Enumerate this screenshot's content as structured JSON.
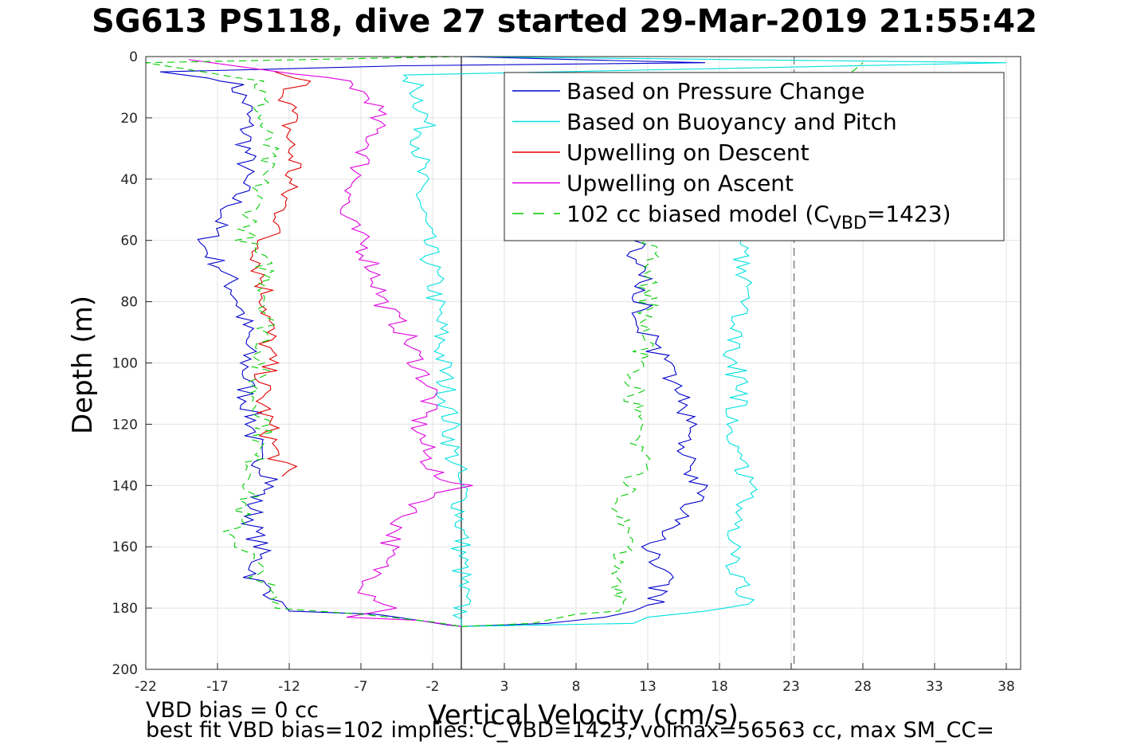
{
  "chart_data": {
    "type": "line",
    "title": "SG613 PS118, dive 27 started 29-Mar-2019 21:55:42",
    "xlabel": "Vertical Velocity (cm/s)",
    "ylabel": "Depth (m)",
    "xlim": [
      -22,
      39
    ],
    "ylim": [
      0,
      200
    ],
    "y_reversed": true,
    "grid": true,
    "legend_position": "top-right",
    "xticks": [
      "-22",
      "-17",
      "-12",
      "-7",
      "-2",
      "3",
      "8",
      "13",
      "18",
      "23",
      "28",
      "33",
      "38"
    ],
    "yticks": [
      "0",
      "20",
      "40",
      "60",
      "80",
      "100",
      "120",
      "140",
      "160",
      "180",
      "200"
    ],
    "vertical_lines": [
      {
        "x": 0,
        "style": "solid",
        "color": "#404040"
      },
      {
        "x": 23.2,
        "style": "dashed",
        "color": "#808080"
      }
    ],
    "legend": {
      "entries": [
        {
          "label": "Based on Pressure Change",
          "color": "#0000cc",
          "dash": "solid"
        },
        {
          "label": "Based on Buoyancy and Pitch",
          "color": "#00e0e0",
          "dash": "solid"
        },
        {
          "label": "Upwelling on Descent",
          "color": "#e00000",
          "dash": "solid"
        },
        {
          "label": "Upwelling on Ascent",
          "color": "#e000e0",
          "dash": "solid"
        },
        {
          "label_main": "102 cc biased model (C",
          "label_sub": "VBD",
          "label_end": "=1423)",
          "color": "#00cc00",
          "dash": "dashed"
        }
      ]
    },
    "series": [
      {
        "name": "Based on Pressure Change",
        "color": "#0000cc",
        "segment": "descent",
        "points": [
          [
            0,
            0
          ],
          [
            8,
            1
          ],
          [
            17,
            2
          ],
          [
            -4,
            3
          ],
          [
            -21,
            5
          ],
          [
            -16,
            8
          ],
          [
            -15,
            15
          ],
          [
            -15,
            25
          ],
          [
            -15,
            35
          ],
          [
            -15.5,
            45
          ],
          [
            -17,
            55
          ],
          [
            -18,
            62
          ],
          [
            -16.5,
            70
          ],
          [
            -15.5,
            80
          ],
          [
            -15,
            90
          ],
          [
            -15,
            100
          ],
          [
            -15,
            110
          ],
          [
            -14.5,
            120
          ],
          [
            -14.5,
            130
          ],
          [
            -13,
            138
          ],
          [
            -14.5,
            145
          ],
          [
            -14.5,
            155
          ],
          [
            -14,
            160
          ],
          [
            -14.5,
            170
          ],
          [
            -12.5,
            178
          ],
          [
            -12,
            181
          ],
          [
            -6,
            182
          ],
          [
            -3,
            184
          ],
          [
            -1,
            185.5
          ],
          [
            0,
            186
          ]
        ]
      },
      {
        "name": "Based on Pressure Change",
        "color": "#0000cc",
        "segment": "ascent",
        "points": [
          [
            0,
            186
          ],
          [
            6,
            185
          ],
          [
            10,
            183
          ],
          [
            12,
            181
          ],
          [
            13.5,
            178
          ],
          [
            14,
            170
          ],
          [
            13,
            160
          ],
          [
            15.5,
            150
          ],
          [
            16.5,
            140
          ],
          [
            15.5,
            130
          ],
          [
            16,
            120
          ],
          [
            15.5,
            110
          ],
          [
            14,
            100
          ],
          [
            13,
            90
          ],
          [
            12.5,
            80
          ],
          [
            12.5,
            70
          ],
          [
            12,
            60
          ]
        ]
      },
      {
        "name": "Based on Buoyancy and Pitch",
        "color": "#00e0e0",
        "segment": "descent",
        "points": [
          [
            0,
            0
          ],
          [
            38,
            2
          ],
          [
            -4,
            6
          ],
          [
            -3.5,
            8
          ],
          [
            -3,
            12
          ],
          [
            -2.5,
            20
          ],
          [
            -2.8,
            30
          ],
          [
            -3,
            40
          ],
          [
            -2.8,
            50
          ],
          [
            -2.5,
            60
          ],
          [
            -2,
            70
          ],
          [
            -1.8,
            80
          ],
          [
            -1.5,
            90
          ],
          [
            -1.3,
            100
          ],
          [
            -1,
            110
          ],
          [
            -0.8,
            120
          ],
          [
            -0.6,
            130
          ],
          [
            -0.2,
            137
          ],
          [
            0,
            140
          ],
          [
            0,
            186
          ]
        ]
      },
      {
        "name": "Based on Buoyancy and Pitch",
        "color": "#00e0e0",
        "segment": "ascent",
        "points": [
          [
            0,
            186
          ],
          [
            12,
            185
          ],
          [
            13,
            183
          ],
          [
            19,
            180
          ],
          [
            20,
            176
          ],
          [
            19,
            170
          ],
          [
            19.5,
            160
          ],
          [
            19,
            150
          ],
          [
            20,
            140
          ],
          [
            19.5,
            130
          ],
          [
            19,
            120
          ],
          [
            19.5,
            110
          ],
          [
            19,
            100
          ],
          [
            19,
            90
          ],
          [
            19.5,
            80
          ],
          [
            19.5,
            70
          ],
          [
            19.5,
            60
          ]
        ]
      },
      {
        "name": "Upwelling on Descent",
        "color": "#e00000",
        "points": [
          [
            -13,
            5
          ],
          [
            -11,
            8
          ],
          [
            -12,
            12
          ],
          [
            -12,
            20
          ],
          [
            -12,
            30
          ],
          [
            -11.5,
            35
          ],
          [
            -12,
            40
          ],
          [
            -12.5,
            50
          ],
          [
            -12.5,
            55
          ],
          [
            -14,
            60
          ],
          [
            -14,
            70
          ],
          [
            -13.5,
            80
          ],
          [
            -13.5,
            90
          ],
          [
            -13.5,
            100
          ],
          [
            -14,
            110
          ],
          [
            -13.5,
            120
          ],
          [
            -13,
            130
          ],
          [
            -12,
            135
          ],
          [
            -12.5,
            137
          ]
        ]
      },
      {
        "name": "Upwelling on Ascent",
        "color": "#e000e0",
        "points": [
          [
            -19,
            1
          ],
          [
            -8,
            8
          ],
          [
            -6,
            15
          ],
          [
            -6,
            25
          ],
          [
            -7,
            35
          ],
          [
            -7.5,
            45
          ],
          [
            -8.5,
            50
          ],
          [
            -7,
            60
          ],
          [
            -6,
            70
          ],
          [
            -5.5,
            80
          ],
          [
            -4,
            90
          ],
          [
            -3,
            100
          ],
          [
            -2,
            110
          ],
          [
            -3,
            120
          ],
          [
            -2.5,
            130
          ],
          [
            -1.5,
            138
          ],
          [
            0,
            140
          ],
          [
            -2.5,
            145
          ],
          [
            -4,
            150
          ],
          [
            -5,
            160
          ],
          [
            -6,
            170
          ],
          [
            -6.5,
            175
          ],
          [
            -4.5,
            180
          ],
          [
            -8,
            183
          ],
          [
            -3,
            184
          ],
          [
            0,
            186
          ]
        ]
      },
      {
        "name": "102 cc biased model (C_VBD=1423)",
        "color": "#00cc00",
        "dash": "dashed",
        "segment": "descent",
        "points": [
          [
            0,
            0
          ],
          [
            -22,
            2
          ],
          [
            -14,
            8
          ],
          [
            -14,
            20
          ],
          [
            -13.5,
            30
          ],
          [
            -14,
            40
          ],
          [
            -14.5,
            50
          ],
          [
            -15,
            60
          ],
          [
            -13.5,
            70
          ],
          [
            -13.5,
            80
          ],
          [
            -13.5,
            90
          ],
          [
            -14,
            100
          ],
          [
            -14.5,
            110
          ],
          [
            -13.5,
            120
          ],
          [
            -14.5,
            130
          ],
          [
            -14.5,
            140
          ],
          [
            -16,
            155
          ],
          [
            -14.5,
            165
          ],
          [
            -13.5,
            175
          ],
          [
            -13,
            180
          ],
          [
            -7,
            182
          ],
          [
            -2,
            184.5
          ],
          [
            0,
            186
          ]
        ]
      },
      {
        "name": "102 cc biased model (C_VBD=1423)",
        "color": "#00cc00",
        "dash": "dashed",
        "segment": "ascent",
        "points": [
          [
            0,
            186
          ],
          [
            5,
            185
          ],
          [
            8,
            182
          ],
          [
            11,
            181
          ],
          [
            11.5,
            178
          ],
          [
            11,
            170
          ],
          [
            11.5,
            160
          ],
          [
            11,
            150
          ],
          [
            12,
            140
          ],
          [
            12.5,
            130
          ],
          [
            12.5,
            120
          ],
          [
            12,
            110
          ],
          [
            12.5,
            100
          ],
          [
            13,
            90
          ],
          [
            13,
            80
          ],
          [
            13,
            70
          ],
          [
            13,
            62
          ],
          [
            28,
            2
          ]
        ]
      }
    ]
  },
  "footer": {
    "line1": "VBD bias = 0 cc",
    "line2": "best fit VBD bias=102 implies: C_VBD=1423, volmax=56563 cc, max SM_CC="
  }
}
